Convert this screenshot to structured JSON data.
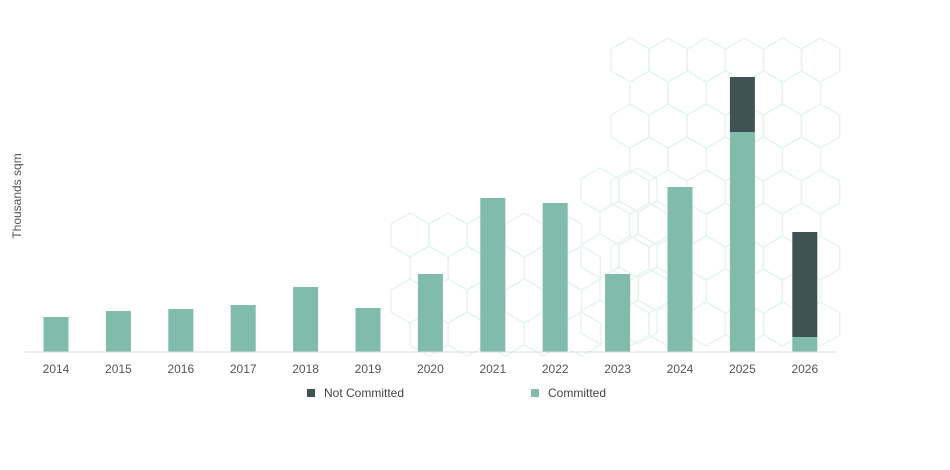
{
  "chart_data": {
    "type": "bar",
    "stacked": true,
    "ylabel": "Thousands sqm",
    "xlabel": "",
    "title": "",
    "categories": [
      "2014",
      "2015",
      "2016",
      "2017",
      "2018",
      "2019",
      "2020",
      "2021",
      "2022",
      "2023",
      "2024",
      "2025",
      "2026"
    ],
    "series": [
      {
        "name": "Committed",
        "color": "#80bbab",
        "values": [
          35,
          41,
          43,
          47,
          65,
          44,
          78,
          154,
          149,
          78,
          165,
          220,
          15
        ]
      },
      {
        "name": "Not Committed",
        "color": "#3f5355",
        "values": [
          0,
          0,
          0,
          0,
          0,
          0,
          0,
          0,
          0,
          0,
          0,
          55,
          105
        ]
      }
    ],
    "ylim": [
      0,
      300
    ],
    "grid": false,
    "legend": "bottom"
  },
  "legend": {
    "not_committed_label": "Not Committed",
    "committed_label": "Committed"
  },
  "colors": {
    "committed": "#80bbab",
    "not_committed": "#3f5355",
    "axis": "#dddddd",
    "pattern": "#e7f4ef"
  }
}
